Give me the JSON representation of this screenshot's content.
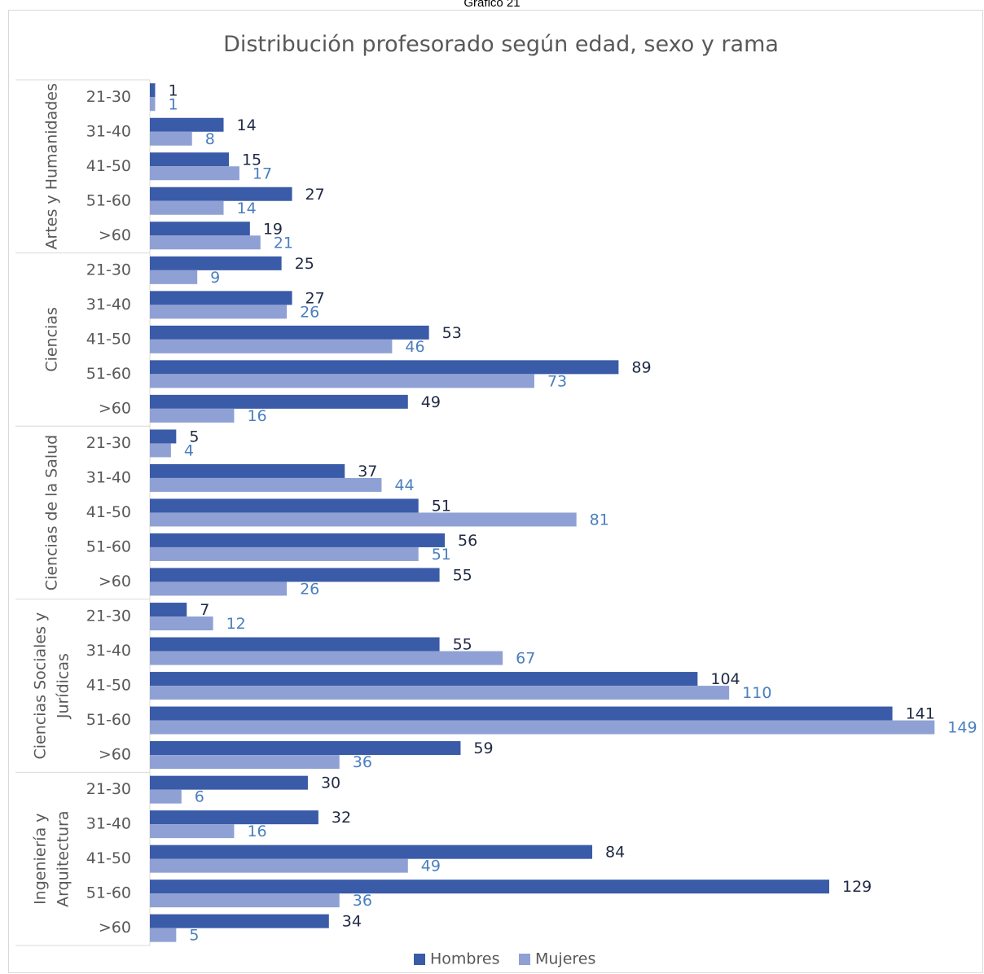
{
  "caption": "Gráfico 21",
  "colors": {
    "hombres": "#3a5ba8",
    "mujeres": "#8fa1d4",
    "hombres_label": "#1f2a44",
    "mujeres_label": "#4a7fbf",
    "axis_text": "#595959"
  },
  "chart_data": {
    "type": "bar",
    "orientation": "horizontal",
    "title": "Distribución profesorado según edad, sexo y rama",
    "groups": [
      {
        "name": "Artes y Humanidades",
        "lines": [
          "Artes y Humanidades"
        ]
      },
      {
        "name": "Ciencias",
        "lines": [
          "Ciencias"
        ]
      },
      {
        "name": "Ciencias de la Salud",
        "lines": [
          "Ciencias de la Salud"
        ]
      },
      {
        "name": "Ciencias Sociales y Jurídicas",
        "lines": [
          "Ciencias Sociales y",
          "Jurídicas"
        ]
      },
      {
        "name": "Ingeniería y Arquitectura",
        "lines": [
          "Ingeniería y",
          "Arquitectura"
        ]
      }
    ],
    "categories": [
      "21-30",
      "31-40",
      "41-50",
      "51-60",
      ">60"
    ],
    "series": [
      {
        "name": "Hombres",
        "values": [
          [
            1,
            14,
            15,
            27,
            19
          ],
          [
            25,
            27,
            53,
            89,
            49
          ],
          [
            5,
            37,
            51,
            56,
            55
          ],
          [
            7,
            55,
            104,
            141,
            59
          ],
          [
            30,
            32,
            84,
            129,
            34
          ]
        ]
      },
      {
        "name": "Mujeres",
        "values": [
          [
            1,
            8,
            17,
            14,
            21
          ],
          [
            9,
            26,
            46,
            73,
            16
          ],
          [
            4,
            44,
            81,
            51,
            26
          ],
          [
            12,
            67,
            110,
            149,
            36
          ],
          [
            6,
            16,
            49,
            36,
            5
          ]
        ]
      }
    ],
    "xlim": [
      0,
      149
    ],
    "grid": false,
    "data_labels": true,
    "legend": {
      "position": "bottom",
      "entries": [
        "Hombres",
        "Mujeres"
      ]
    }
  }
}
